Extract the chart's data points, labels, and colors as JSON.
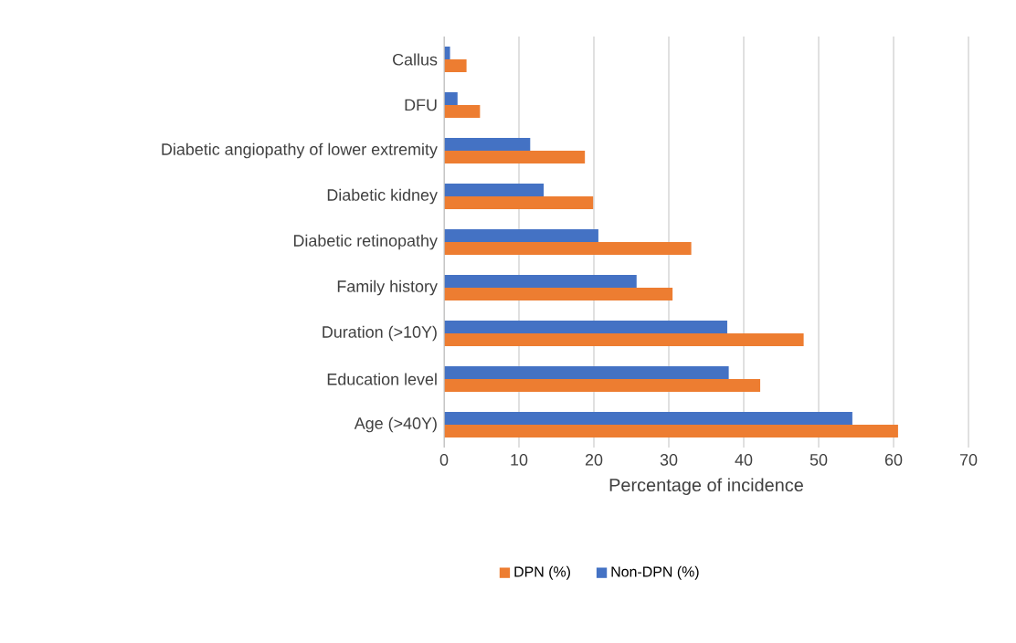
{
  "chart_data": {
    "type": "bar",
    "orientation": "horizontal",
    "categories": [
      "Callus",
      "DFU",
      "Diabetic angiopathy of lower extremity",
      "Diabetic kidney",
      "Diabetic retinopathy",
      "Family history",
      "Duration (>10Y)",
      "Education level",
      "Age (>40Y)"
    ],
    "series": [
      {
        "name": "DPN (%)",
        "color": "#ed7d31",
        "values": [
          3.0,
          4.8,
          18.8,
          19.9,
          33.0,
          30.5,
          48.0,
          42.2,
          60.6
        ]
      },
      {
        "name": "Non-DPN (%)",
        "color": "#4472c4",
        "values": [
          0.8,
          1.8,
          11.5,
          13.3,
          20.6,
          25.7,
          37.8,
          38.0,
          54.5
        ]
      }
    ],
    "xlabel": "Percentage of incidence",
    "xlim": [
      0,
      70
    ],
    "xticks": [
      0,
      10,
      20,
      30,
      40,
      50,
      60,
      70
    ],
    "grid": "x",
    "legend": "bottom"
  }
}
